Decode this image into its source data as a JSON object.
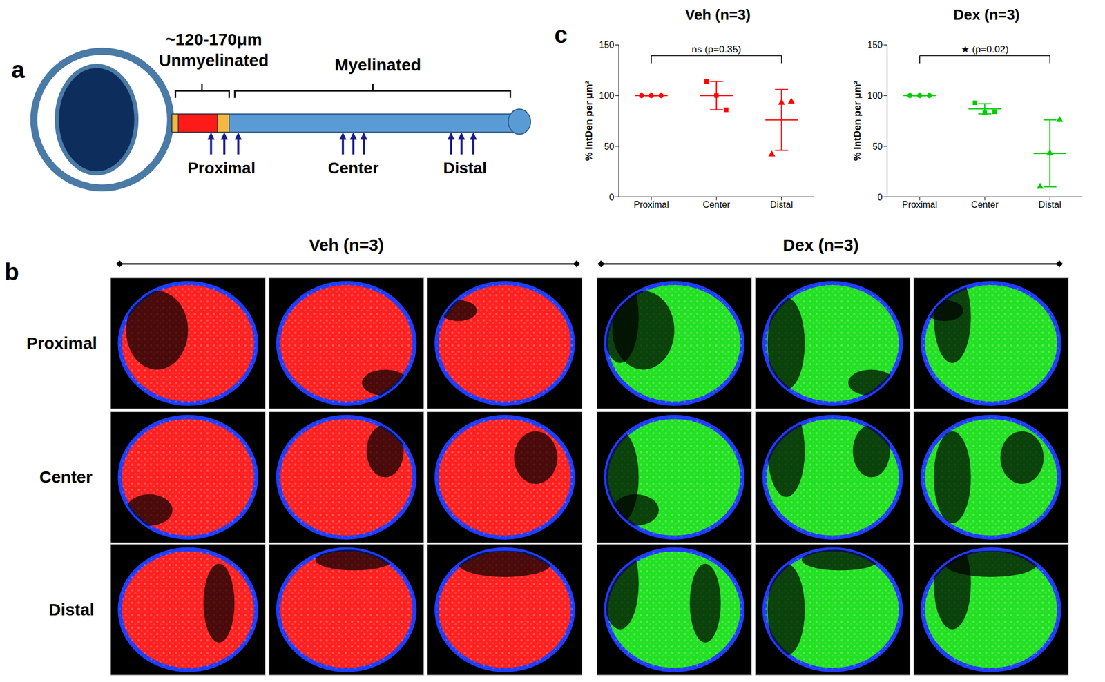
{
  "panel_labels": [
    "a",
    "b",
    "c"
  ],
  "diagram": {
    "length_label": "~120-170μm",
    "segments": [
      "Unmyelinated",
      "Myelinated"
    ],
    "sites": [
      "Proximal",
      "Center",
      "Distal"
    ]
  },
  "images": {
    "groups": [
      {
        "title": "Veh (n=3)",
        "color": "#ff2020"
      },
      {
        "title": "Dex (n=3)",
        "color": "#22e022"
      }
    ],
    "rows": [
      "Proximal",
      "Center",
      "Distal"
    ],
    "columns": 3
  },
  "chart_data": [
    {
      "type": "scatter",
      "title": "Veh (n=3)",
      "y_label": "% IntDen per μm²",
      "categories": [
        "Proximal",
        "Center",
        "Distal"
      ],
      "values": [
        [
          100,
          100,
          100
        ],
        [
          114,
          100,
          86
        ],
        [
          42,
          93,
          94
        ]
      ],
      "means": [
        100,
        100,
        76
      ],
      "errors": [
        0,
        14,
        30
      ],
      "color": "#ff0000",
      "markers": [
        "circle",
        "square",
        "triangle"
      ],
      "ylim": [
        0,
        150
      ],
      "yticks": [
        0,
        50,
        100,
        150
      ],
      "annotations": [
        {
          "text": "ns (p=0.35)",
          "from": "Proximal",
          "to": "Distal"
        }
      ]
    },
    {
      "type": "scatter",
      "title": "Dex (n=3)",
      "y_label": "% IntDen per μm²",
      "categories": [
        "Proximal",
        "Center",
        "Distal"
      ],
      "values": [
        [
          100,
          100,
          100
        ],
        [
          93,
          83,
          84
        ],
        [
          10,
          43,
          76
        ]
      ],
      "means": [
        100,
        87,
        43
      ],
      "errors": [
        0,
        5,
        33
      ],
      "color": "#00cc00",
      "markers": [
        "circle",
        "square",
        "triangle"
      ],
      "ylim": [
        0,
        150
      ],
      "yticks": [
        0,
        50,
        100,
        150
      ],
      "annotations": [
        {
          "text": "★ (p=0.02)",
          "from": "Proximal",
          "to": "Distal"
        }
      ]
    }
  ]
}
